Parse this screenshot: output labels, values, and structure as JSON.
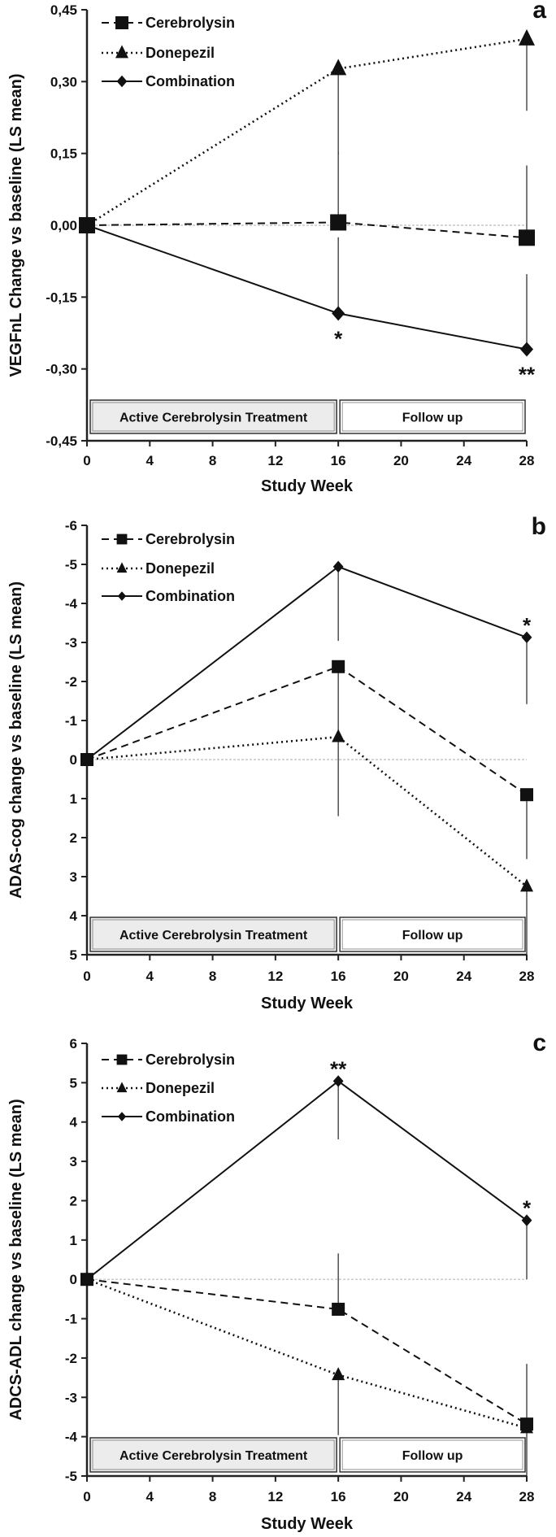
{
  "chart_data": [
    {
      "type": "line",
      "panel_label": "a",
      "title": "",
      "xlabel": "Study Week",
      "ylabel": "VEGFnL Change vs baseline (LS mean)",
      "x": [
        0,
        16,
        28
      ],
      "xticks": [
        0,
        4,
        8,
        12,
        16,
        20,
        24,
        28
      ],
      "xtick_labels": [
        "0",
        "4",
        "8",
        "12",
        "16",
        "20",
        "24",
        "28"
      ],
      "ylim": [
        -0.45,
        0.45
      ],
      "y_inverted": false,
      "yticks": [
        0.45,
        0.3,
        0.15,
        0.0,
        -0.15,
        -0.3,
        -0.45
      ],
      "ytick_labels": [
        "0,45",
        "0,30",
        "0,15",
        "0,00",
        "-0,15",
        "-0,30",
        "-0,45"
      ],
      "legend_position": "top-left",
      "series": [
        {
          "name": "Cerebrolysin",
          "style": "dashed",
          "marker": "square",
          "values": [
            0,
            0.006,
            -0.026
          ],
          "error_to": [
            null,
            0.153,
            0.125
          ]
        },
        {
          "name": "Donepezil",
          "style": "dotted",
          "marker": "triangle",
          "values": [
            0,
            0.327,
            0.389
          ],
          "error_to": [
            null,
            0.148,
            0.239
          ]
        },
        {
          "name": "Combination",
          "style": "solid",
          "marker": "diamond",
          "values": [
            0,
            -0.184,
            -0.259
          ],
          "error_to": [
            null,
            -0.025,
            -0.102
          ]
        }
      ],
      "annotations": [
        {
          "text": "*",
          "x": 16,
          "series": "Combination",
          "position": "below"
        },
        {
          "text": "**",
          "x": 28,
          "series": "Combination",
          "position": "below"
        }
      ],
      "phases": [
        {
          "label": "Active Cerebrolysin Treatment",
          "from": 0,
          "to": 16,
          "shaded": true
        },
        {
          "label": "Follow up",
          "from": 16,
          "to": 28,
          "shaded": false
        }
      ]
    },
    {
      "type": "line",
      "panel_label": "b",
      "title": "",
      "xlabel": "Study Week",
      "ylabel": "ADAS-cog change vs baseline (LS mean)",
      "x": [
        0,
        16,
        28
      ],
      "xticks": [
        0,
        4,
        8,
        12,
        16,
        20,
        24,
        28
      ],
      "xtick_labels": [
        "0",
        "4",
        "8",
        "12",
        "16",
        "20",
        "24",
        "28"
      ],
      "ylim": [
        -6,
        5
      ],
      "y_inverted": true,
      "yticks": [
        -6,
        -5,
        -4,
        -3,
        -2,
        -1,
        0,
        1,
        2,
        3,
        4,
        5
      ],
      "ytick_labels": [
        "-6",
        "-5",
        "-4",
        "-3",
        "-2",
        "-1",
        "0",
        "1",
        "2",
        "3",
        "4",
        "5"
      ],
      "legend_position": "top-left",
      "series": [
        {
          "name": "Cerebrolysin",
          "style": "dashed",
          "marker": "square",
          "values": [
            0,
            -2.38,
            0.9
          ],
          "error_to": [
            null,
            -0.6,
            2.55
          ]
        },
        {
          "name": "Donepezil",
          "style": "dotted",
          "marker": "triangle",
          "values": [
            0,
            -0.58,
            3.25
          ],
          "error_to": [
            null,
            1.45,
            5
          ]
        },
        {
          "name": "Combination",
          "style": "solid",
          "marker": "diamond",
          "values": [
            0,
            -4.94,
            -3.13
          ],
          "error_to": [
            null,
            -3.04,
            -1.42
          ]
        }
      ],
      "annotations": [
        {
          "text": "*",
          "x": 28,
          "series": "Combination",
          "position": "above"
        }
      ],
      "phases": [
        {
          "label": "Active Cerebrolysin Treatment",
          "from": 0,
          "to": 16,
          "shaded": true
        },
        {
          "label": "Follow up",
          "from": 16,
          "to": 28,
          "shaded": false
        }
      ]
    },
    {
      "type": "line",
      "panel_label": "c",
      "title": "",
      "xlabel": "Study Week",
      "ylabel": "ADCS-ADL change vs baseline (LS mean)",
      "x": [
        0,
        16,
        28
      ],
      "xticks": [
        0,
        4,
        8,
        12,
        16,
        20,
        24,
        28
      ],
      "xtick_labels": [
        "0",
        "4",
        "8",
        "12",
        "16",
        "20",
        "24",
        "28"
      ],
      "ylim": [
        -5,
        6
      ],
      "y_inverted": false,
      "yticks": [
        6,
        5,
        4,
        3,
        2,
        1,
        0,
        -1,
        -2,
        -3,
        -4,
        -5
      ],
      "ytick_labels": [
        "6",
        "5",
        "4",
        "3",
        "2",
        "1",
        "0",
        "-1",
        "-2",
        "-3",
        "-4",
        "-5"
      ],
      "legend_position": "top-left",
      "series": [
        {
          "name": "Cerebrolysin",
          "style": "dashed",
          "marker": "square",
          "values": [
            0,
            -0.76,
            -3.68
          ],
          "error_to": [
            null,
            0.66,
            -2.15
          ]
        },
        {
          "name": "Donepezil",
          "style": "dotted",
          "marker": "triangle",
          "values": [
            0,
            -2.43,
            -3.78
          ],
          "error_to": [
            null,
            -3.96,
            -5
          ]
        },
        {
          "name": "Combination",
          "style": "solid",
          "marker": "diamond",
          "values": [
            0,
            5.04,
            1.5
          ],
          "error_to": [
            null,
            3.56,
            0
          ]
        }
      ],
      "annotations": [
        {
          "text": "**",
          "x": 16,
          "series": "Combination",
          "position": "above"
        },
        {
          "text": "*",
          "x": 28,
          "series": "Combination",
          "position": "above"
        }
      ],
      "phases": [
        {
          "label": "Active Cerebrolysin Treatment",
          "from": 0,
          "to": 16,
          "shaded": true
        },
        {
          "label": "Follow up",
          "from": 16,
          "to": 28,
          "shaded": false
        }
      ]
    }
  ],
  "colors": {
    "line": "#111111",
    "zero_line": "#bbbbbb",
    "phase_shaded": "#ececec",
    "error_bar": "#333333"
  }
}
